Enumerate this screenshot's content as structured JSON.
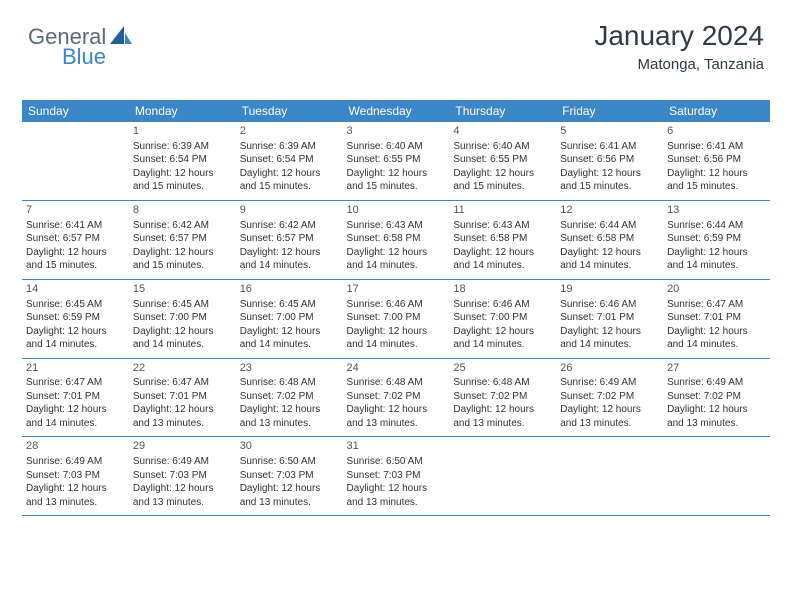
{
  "logo": {
    "part1": "General",
    "part2": "Blue"
  },
  "header": {
    "title": "January 2024",
    "location": "Matonga, Tanzania"
  },
  "dayHeaders": [
    "Sunday",
    "Monday",
    "Tuesday",
    "Wednesday",
    "Thursday",
    "Friday",
    "Saturday"
  ],
  "calendar": {
    "header_bg": "#3b86c7",
    "header_text": "#ffffff",
    "row_border": "#3b86c7",
    "weeks": [
      [
        null,
        {
          "d": "1",
          "sr": "Sunrise: 6:39 AM",
          "ss": "Sunset: 6:54 PM",
          "dl": "Daylight: 12 hours and 15 minutes."
        },
        {
          "d": "2",
          "sr": "Sunrise: 6:39 AM",
          "ss": "Sunset: 6:54 PM",
          "dl": "Daylight: 12 hours and 15 minutes."
        },
        {
          "d": "3",
          "sr": "Sunrise: 6:40 AM",
          "ss": "Sunset: 6:55 PM",
          "dl": "Daylight: 12 hours and 15 minutes."
        },
        {
          "d": "4",
          "sr": "Sunrise: 6:40 AM",
          "ss": "Sunset: 6:55 PM",
          "dl": "Daylight: 12 hours and 15 minutes."
        },
        {
          "d": "5",
          "sr": "Sunrise: 6:41 AM",
          "ss": "Sunset: 6:56 PM",
          "dl": "Daylight: 12 hours and 15 minutes."
        },
        {
          "d": "6",
          "sr": "Sunrise: 6:41 AM",
          "ss": "Sunset: 6:56 PM",
          "dl": "Daylight: 12 hours and 15 minutes."
        }
      ],
      [
        {
          "d": "7",
          "sr": "Sunrise: 6:41 AM",
          "ss": "Sunset: 6:57 PM",
          "dl": "Daylight: 12 hours and 15 minutes."
        },
        {
          "d": "8",
          "sr": "Sunrise: 6:42 AM",
          "ss": "Sunset: 6:57 PM",
          "dl": "Daylight: 12 hours and 15 minutes."
        },
        {
          "d": "9",
          "sr": "Sunrise: 6:42 AM",
          "ss": "Sunset: 6:57 PM",
          "dl": "Daylight: 12 hours and 14 minutes."
        },
        {
          "d": "10",
          "sr": "Sunrise: 6:43 AM",
          "ss": "Sunset: 6:58 PM",
          "dl": "Daylight: 12 hours and 14 minutes."
        },
        {
          "d": "11",
          "sr": "Sunrise: 6:43 AM",
          "ss": "Sunset: 6:58 PM",
          "dl": "Daylight: 12 hours and 14 minutes."
        },
        {
          "d": "12",
          "sr": "Sunrise: 6:44 AM",
          "ss": "Sunset: 6:58 PM",
          "dl": "Daylight: 12 hours and 14 minutes."
        },
        {
          "d": "13",
          "sr": "Sunrise: 6:44 AM",
          "ss": "Sunset: 6:59 PM",
          "dl": "Daylight: 12 hours and 14 minutes."
        }
      ],
      [
        {
          "d": "14",
          "sr": "Sunrise: 6:45 AM",
          "ss": "Sunset: 6:59 PM",
          "dl": "Daylight: 12 hours and 14 minutes."
        },
        {
          "d": "15",
          "sr": "Sunrise: 6:45 AM",
          "ss": "Sunset: 7:00 PM",
          "dl": "Daylight: 12 hours and 14 minutes."
        },
        {
          "d": "16",
          "sr": "Sunrise: 6:45 AM",
          "ss": "Sunset: 7:00 PM",
          "dl": "Daylight: 12 hours and 14 minutes."
        },
        {
          "d": "17",
          "sr": "Sunrise: 6:46 AM",
          "ss": "Sunset: 7:00 PM",
          "dl": "Daylight: 12 hours and 14 minutes."
        },
        {
          "d": "18",
          "sr": "Sunrise: 6:46 AM",
          "ss": "Sunset: 7:00 PM",
          "dl": "Daylight: 12 hours and 14 minutes."
        },
        {
          "d": "19",
          "sr": "Sunrise: 6:46 AM",
          "ss": "Sunset: 7:01 PM",
          "dl": "Daylight: 12 hours and 14 minutes."
        },
        {
          "d": "20",
          "sr": "Sunrise: 6:47 AM",
          "ss": "Sunset: 7:01 PM",
          "dl": "Daylight: 12 hours and 14 minutes."
        }
      ],
      [
        {
          "d": "21",
          "sr": "Sunrise: 6:47 AM",
          "ss": "Sunset: 7:01 PM",
          "dl": "Daylight: 12 hours and 14 minutes."
        },
        {
          "d": "22",
          "sr": "Sunrise: 6:47 AM",
          "ss": "Sunset: 7:01 PM",
          "dl": "Daylight: 12 hours and 13 minutes."
        },
        {
          "d": "23",
          "sr": "Sunrise: 6:48 AM",
          "ss": "Sunset: 7:02 PM",
          "dl": "Daylight: 12 hours and 13 minutes."
        },
        {
          "d": "24",
          "sr": "Sunrise: 6:48 AM",
          "ss": "Sunset: 7:02 PM",
          "dl": "Daylight: 12 hours and 13 minutes."
        },
        {
          "d": "25",
          "sr": "Sunrise: 6:48 AM",
          "ss": "Sunset: 7:02 PM",
          "dl": "Daylight: 12 hours and 13 minutes."
        },
        {
          "d": "26",
          "sr": "Sunrise: 6:49 AM",
          "ss": "Sunset: 7:02 PM",
          "dl": "Daylight: 12 hours and 13 minutes."
        },
        {
          "d": "27",
          "sr": "Sunrise: 6:49 AM",
          "ss": "Sunset: 7:02 PM",
          "dl": "Daylight: 12 hours and 13 minutes."
        }
      ],
      [
        {
          "d": "28",
          "sr": "Sunrise: 6:49 AM",
          "ss": "Sunset: 7:03 PM",
          "dl": "Daylight: 12 hours and 13 minutes."
        },
        {
          "d": "29",
          "sr": "Sunrise: 6:49 AM",
          "ss": "Sunset: 7:03 PM",
          "dl": "Daylight: 12 hours and 13 minutes."
        },
        {
          "d": "30",
          "sr": "Sunrise: 6:50 AM",
          "ss": "Sunset: 7:03 PM",
          "dl": "Daylight: 12 hours and 13 minutes."
        },
        {
          "d": "31",
          "sr": "Sunrise: 6:50 AM",
          "ss": "Sunset: 7:03 PM",
          "dl": "Daylight: 12 hours and 13 minutes."
        },
        null,
        null,
        null
      ]
    ]
  }
}
